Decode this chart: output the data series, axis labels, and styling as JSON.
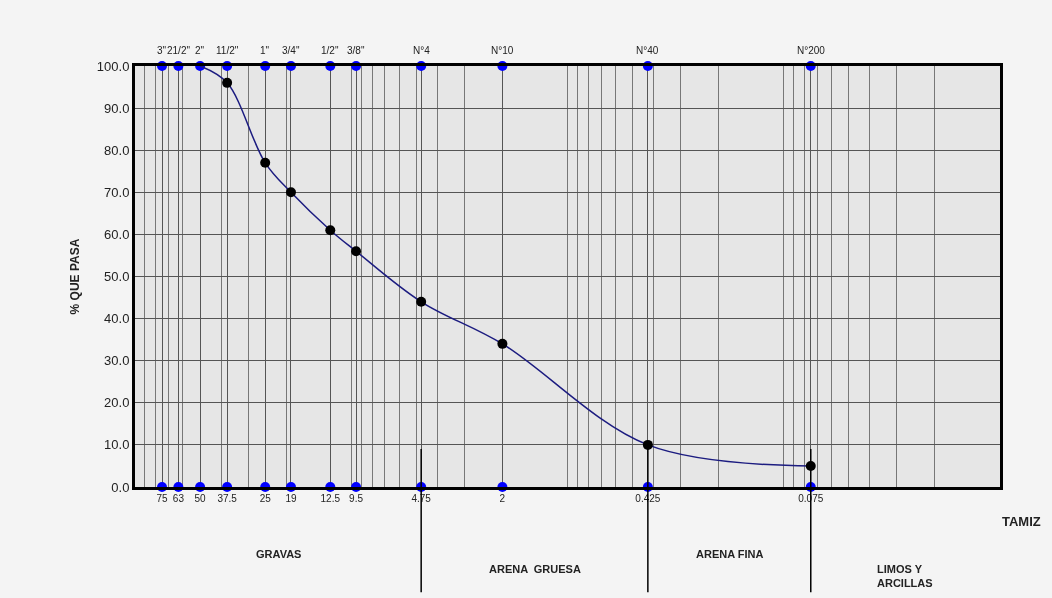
{
  "chart_data": {
    "type": "line",
    "xlabel": "TAMIZ",
    "ylabel": "% QUE PASA",
    "log": "x",
    "xlim": [
      100,
      0.01
    ],
    "ylim": [
      0,
      100
    ],
    "xticks": [
      {
        "value": 75,
        "label": "75"
      },
      {
        "value": 63,
        "label": "63"
      },
      {
        "value": 50,
        "label": "50"
      },
      {
        "value": 37.5,
        "label": "37.5"
      },
      {
        "value": 25,
        "label": "25"
      },
      {
        "value": 19,
        "label": "19"
      },
      {
        "value": 12.5,
        "label": "12.5"
      },
      {
        "value": 9.5,
        "label": "9.5"
      },
      {
        "value": 4.75,
        "label": "4.75"
      },
      {
        "value": 2,
        "label": "2"
      },
      {
        "value": 0.425,
        "label": "0.425"
      },
      {
        "value": 0.075,
        "label": "0.075"
      }
    ],
    "yticks": [
      {
        "value": 0,
        "label": "0.0"
      },
      {
        "value": 10,
        "label": "10.0"
      },
      {
        "value": 20,
        "label": "20.0"
      },
      {
        "value": 30,
        "label": "30.0"
      },
      {
        "value": 40,
        "label": "40.0"
      },
      {
        "value": 50,
        "label": "50.0"
      },
      {
        "value": 60,
        "label": "60.0"
      },
      {
        "value": 70,
        "label": "70.0"
      },
      {
        "value": 80,
        "label": "80.0"
      },
      {
        "value": 90,
        "label": "90.0"
      },
      {
        "value": 100,
        "label": "100.0"
      }
    ],
    "grid": true,
    "marker": "circle",
    "line_style": "solid",
    "series": [
      {
        "type": "scatter",
        "color": "#0000ff",
        "x": [
          75,
          63,
          50,
          37.5,
          25,
          19,
          12.5,
          9.5,
          4.75,
          2,
          0.425,
          0.075
        ],
        "values": [
          100,
          100,
          100,
          100,
          100,
          100,
          100,
          100,
          100,
          100,
          100,
          100
        ]
      },
      {
        "type": "scatter",
        "color": "#0000ff",
        "x": [
          75,
          63,
          50,
          37.5,
          25,
          19,
          12.5,
          9.5,
          4.75,
          2,
          0.425,
          0.075
        ],
        "values": [
          0,
          0,
          0,
          0,
          0,
          0,
          0,
          0,
          0,
          0,
          0,
          0
        ]
      },
      {
        "color": "#1c1c80",
        "colors": [
          null,
          "#000000",
          "#000000",
          "#000000",
          "#000000",
          "#000000",
          "#000000",
          "#000000",
          "#000000",
          "#000000"
        ],
        "x": [
          50,
          37.5,
          25,
          19,
          12.5,
          9.5,
          4.75,
          2,
          0.425,
          0.075
        ],
        "values": [
          100,
          96,
          77,
          70,
          61,
          56,
          44,
          34,
          10,
          5
        ]
      }
    ],
    "ref_lines": [
      {
        "axis": "x",
        "value": 4.75,
        "color": "#000000"
      },
      {
        "axis": "x",
        "value": 0.425,
        "color": "#000000"
      },
      {
        "axis": "x",
        "value": 0.075,
        "color": "#000000"
      }
    ],
    "annotations": [
      "GRAVAS",
      "ARENA  GRUESA",
      "ARENA FINA",
      "LIMOS Y\nARCILLAS",
      {
        "text": "3\"",
        "x": 75,
        "y": 100
      },
      {
        "text": "21/2\"",
        "x": 63,
        "y": 100
      },
      {
        "text": "2\"",
        "x": 50,
        "y": 100
      },
      {
        "text": "11/2\"",
        "x": 37.5,
        "y": 100
      },
      {
        "text": "1\"",
        "x": 25,
        "y": 100
      },
      {
        "text": "3/4\"",
        "x": 19,
        "y": 100
      },
      {
        "text": "1/2\"",
        "x": 12.5,
        "y": 100
      },
      {
        "text": "3/8\"",
        "x": 9.5,
        "y": 100
      },
      {
        "text": "N°4",
        "x": 4.75,
        "y": 100
      },
      {
        "text": "N°10",
        "x": 2,
        "y": 100
      },
      {
        "text": "N°40",
        "x": 0.425,
        "y": 100
      },
      {
        "text": "N°200",
        "x": 0.075,
        "y": 100
      }
    ]
  }
}
